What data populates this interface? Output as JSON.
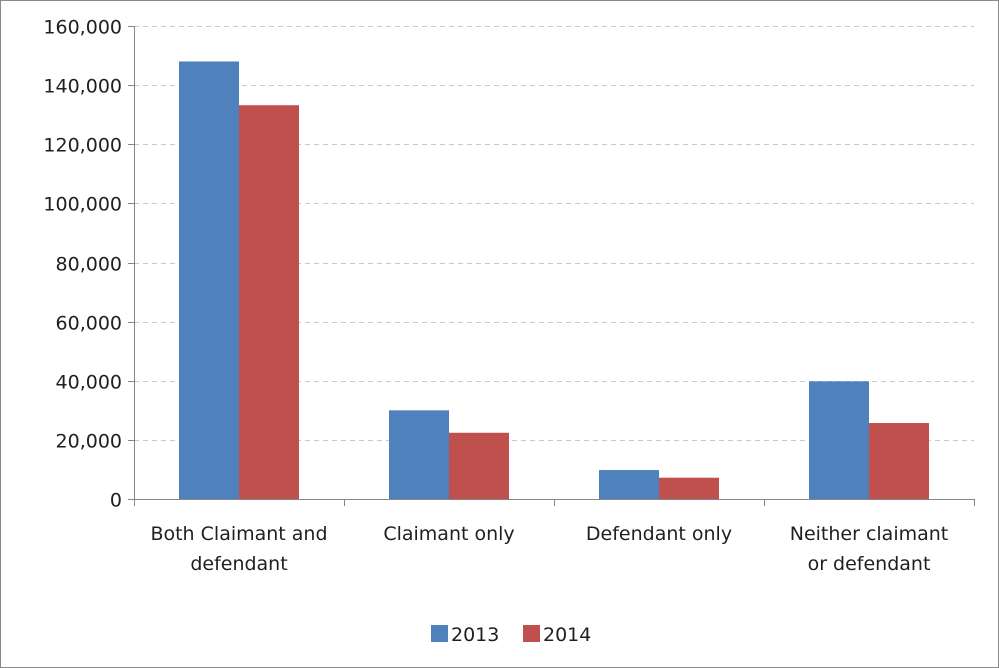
{
  "chart_data": {
    "type": "bar",
    "title": "",
    "xlabel": "",
    "ylabel": "",
    "categories": [
      [
        "Both Claimant and",
        "defendant"
      ],
      [
        "Claimant only"
      ],
      [
        "Defendant only"
      ],
      [
        "Neither claimant",
        "or defendant"
      ]
    ],
    "series": [
      {
        "name": "2013",
        "color": "#4F81BD",
        "values": [
          148000,
          30000,
          9800,
          39800
        ]
      },
      {
        "name": "2014",
        "color": "#C0504D",
        "values": [
          133200,
          22400,
          7200,
          25700
        ]
      }
    ],
    "ylim": [
      0,
      160000
    ],
    "yticks": [
      0,
      20000,
      40000,
      60000,
      80000,
      100000,
      120000,
      140000,
      160000
    ],
    "ytick_labels": [
      "0",
      "20,000",
      "40,000",
      "60,000",
      "80,000",
      "100,000",
      "120,000",
      "140,000",
      "160,000"
    ],
    "grid": "horizontal dashed",
    "legend": "bottom"
  }
}
